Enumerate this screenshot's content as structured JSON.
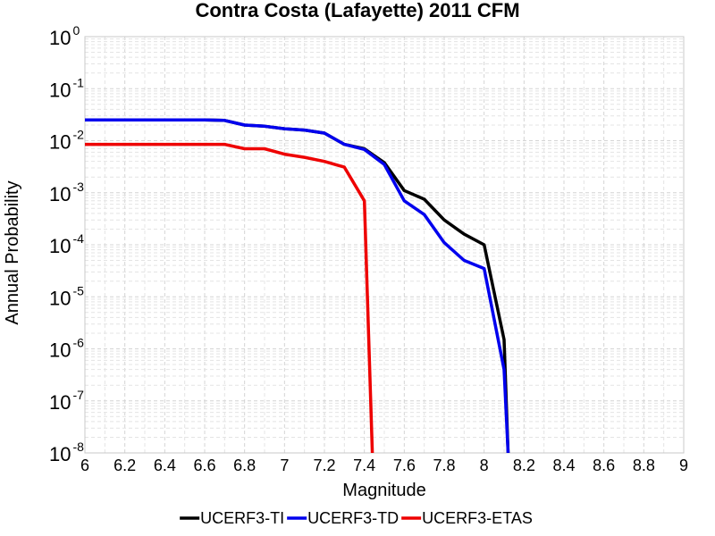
{
  "chart_data": {
    "type": "line",
    "title": "Contra Costa (Lafayette) 2011 CFM",
    "xlabel": "Magnitude",
    "ylabel": "Annual Probability",
    "xlim": [
      6,
      9
    ],
    "ylim": [
      1e-08,
      1
    ],
    "yscale": "log",
    "grid": true,
    "legend_position": "bottom",
    "xticks": [
      "6",
      "6.2",
      "6.4",
      "6.6",
      "6.8",
      "7",
      "7.2",
      "7.4",
      "7.6",
      "7.8",
      "8",
      "8.2",
      "8.4",
      "8.6",
      "8.8",
      "9"
    ],
    "yticks": [
      {
        "base": "10",
        "exp": "-8"
      },
      {
        "base": "10",
        "exp": "-7"
      },
      {
        "base": "10",
        "exp": "-6"
      },
      {
        "base": "10",
        "exp": "-5"
      },
      {
        "base": "10",
        "exp": "-4"
      },
      {
        "base": "10",
        "exp": "-3"
      },
      {
        "base": "10",
        "exp": "-2"
      },
      {
        "base": "10",
        "exp": "-1"
      },
      {
        "base": "10",
        "exp": "0"
      }
    ],
    "series": [
      {
        "name": "UCERF3-TI",
        "color": "#000000",
        "x": [
          6.0,
          6.1,
          6.2,
          6.3,
          6.4,
          6.5,
          6.6,
          6.7,
          6.8,
          6.9,
          7.0,
          7.1,
          7.2,
          7.3,
          7.4,
          7.5,
          7.6,
          7.7,
          7.8,
          7.9,
          8.0,
          8.1,
          8.12
        ],
        "y": [
          0.025,
          0.025,
          0.025,
          0.025,
          0.025,
          0.025,
          0.025,
          0.0245,
          0.02,
          0.019,
          0.017,
          0.016,
          0.014,
          0.0085,
          0.007,
          0.0038,
          0.0011,
          0.00075,
          0.0003,
          0.00016,
          0.0001,
          1.5e-06,
          1e-08
        ]
      },
      {
        "name": "UCERF3-TD",
        "color": "#0000ee",
        "x": [
          6.0,
          6.1,
          6.2,
          6.3,
          6.4,
          6.5,
          6.6,
          6.7,
          6.8,
          6.9,
          7.0,
          7.1,
          7.2,
          7.3,
          7.4,
          7.5,
          7.6,
          7.7,
          7.8,
          7.9,
          8.0,
          8.1,
          8.12
        ],
        "y": [
          0.025,
          0.025,
          0.025,
          0.025,
          0.025,
          0.025,
          0.025,
          0.0245,
          0.02,
          0.019,
          0.017,
          0.016,
          0.014,
          0.0085,
          0.0068,
          0.0035,
          0.0007,
          0.00038,
          0.00011,
          5e-05,
          3.5e-05,
          4e-07,
          1e-08
        ]
      },
      {
        "name": "UCERF3-ETAS",
        "color": "#ee0000",
        "x": [
          6.0,
          6.1,
          6.2,
          6.3,
          6.4,
          6.5,
          6.6,
          6.7,
          6.8,
          6.9,
          7.0,
          7.1,
          7.2,
          7.3,
          7.4,
          7.44
        ],
        "y": [
          0.0085,
          0.0085,
          0.0085,
          0.0085,
          0.0085,
          0.0085,
          0.0085,
          0.0085,
          0.007,
          0.007,
          0.0055,
          0.0048,
          0.004,
          0.0031,
          0.0007,
          1e-08
        ]
      }
    ]
  }
}
